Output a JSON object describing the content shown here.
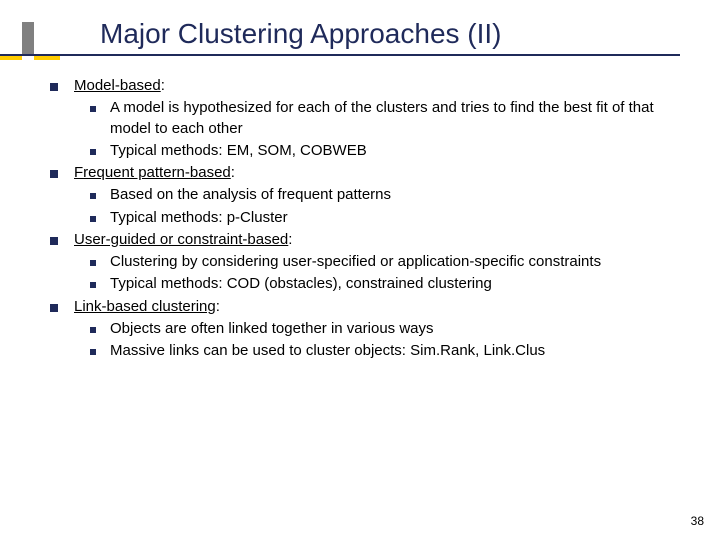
{
  "title": "Major Clustering Approaches (II)",
  "pageNumber": "38",
  "items": [
    {
      "heading": "Model-based",
      "sub": [
        "A model is hypothesized for each of the clusters and tries to find the best fit of that model to each other",
        "Typical methods: EM, SOM, COBWEB"
      ]
    },
    {
      "heading": "Frequent pattern-based",
      "sub": [
        "Based on the analysis of frequent patterns",
        "Typical methods: p-Cluster"
      ]
    },
    {
      "heading": "User-guided or constraint-based",
      "sub": [
        "Clustering by considering user-specified or application-specific constraints",
        "Typical methods: COD (obstacles), constrained clustering"
      ]
    },
    {
      "heading": "Link-based clustering",
      "sub": [
        "Objects are often linked together in various ways",
        "Massive links can be used to cluster objects: Sim.Rank, Link.Clus"
      ]
    }
  ]
}
